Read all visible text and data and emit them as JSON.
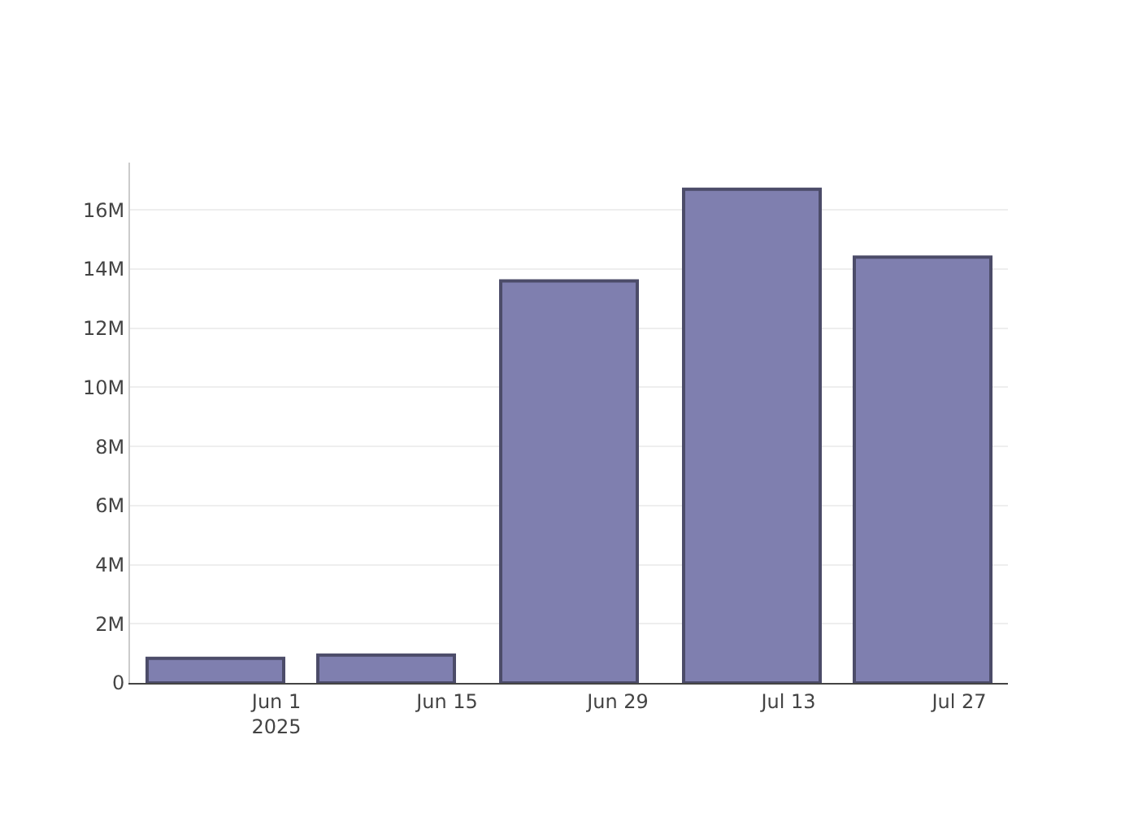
{
  "chart_data": {
    "type": "bar",
    "x": [
      "2025-05-27",
      "2025-06-10",
      "2025-06-25",
      "2025-07-10",
      "2025-07-24"
    ],
    "values": [
      830000,
      940000,
      13600000,
      16700000,
      14400000
    ],
    "color": "#7f7faf",
    "xlim": [
      "2025-05-20",
      "2025-07-31"
    ],
    "xticks": [
      {
        "value": "2025-06-01",
        "label": "Jun 1\n2025"
      },
      {
        "value": "2025-06-15",
        "label": "Jun 15"
      },
      {
        "value": "2025-06-29",
        "label": "Jun 29"
      },
      {
        "value": "2025-07-13",
        "label": "Jul 13"
      },
      {
        "value": "2025-07-27",
        "label": "Jul 27"
      }
    ],
    "ylim": [
      0,
      17600000
    ],
    "yticks": [
      0,
      {
        "value": 2000000,
        "label": "2M"
      },
      {
        "value": 4000000,
        "label": "4M"
      },
      {
        "value": 6000000,
        "label": "6M"
      },
      {
        "value": 8000000,
        "label": "8M"
      },
      {
        "value": 10000000,
        "label": "10M"
      },
      {
        "value": 12000000,
        "label": "12M"
      },
      {
        "value": 14000000,
        "label": "14M"
      },
      {
        "value": 16000000,
        "label": "16M"
      }
    ],
    "grid": "y"
  }
}
